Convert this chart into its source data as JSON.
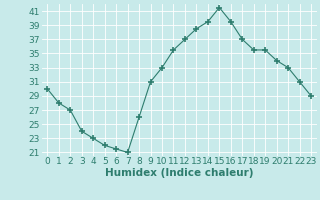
{
  "x": [
    0,
    1,
    2,
    3,
    4,
    5,
    6,
    7,
    8,
    9,
    10,
    11,
    12,
    13,
    14,
    15,
    16,
    17,
    18,
    19,
    20,
    21,
    22,
    23
  ],
  "y": [
    30,
    28,
    27,
    24,
    23,
    22,
    21.5,
    21,
    26,
    31,
    33,
    35.5,
    37,
    38.5,
    39.5,
    41.5,
    39.5,
    37,
    35.5,
    35.5,
    34,
    33,
    31,
    29
  ],
  "line_color": "#2e7d6e",
  "marker": "+",
  "bg_color": "#c8eaea",
  "grid_color": "#b0d4d4",
  "xlabel": "Humidex (Indice chaleur)",
  "ylim": [
    20.5,
    42
  ],
  "xlim": [
    -0.5,
    23.5
  ],
  "yticks": [
    21,
    23,
    25,
    27,
    29,
    31,
    33,
    35,
    37,
    39,
    41
  ],
  "xticks": [
    0,
    1,
    2,
    3,
    4,
    5,
    6,
    7,
    8,
    9,
    10,
    11,
    12,
    13,
    14,
    15,
    16,
    17,
    18,
    19,
    20,
    21,
    22,
    23
  ],
  "xlabel_fontsize": 7.5,
  "tick_fontsize": 6.5
}
